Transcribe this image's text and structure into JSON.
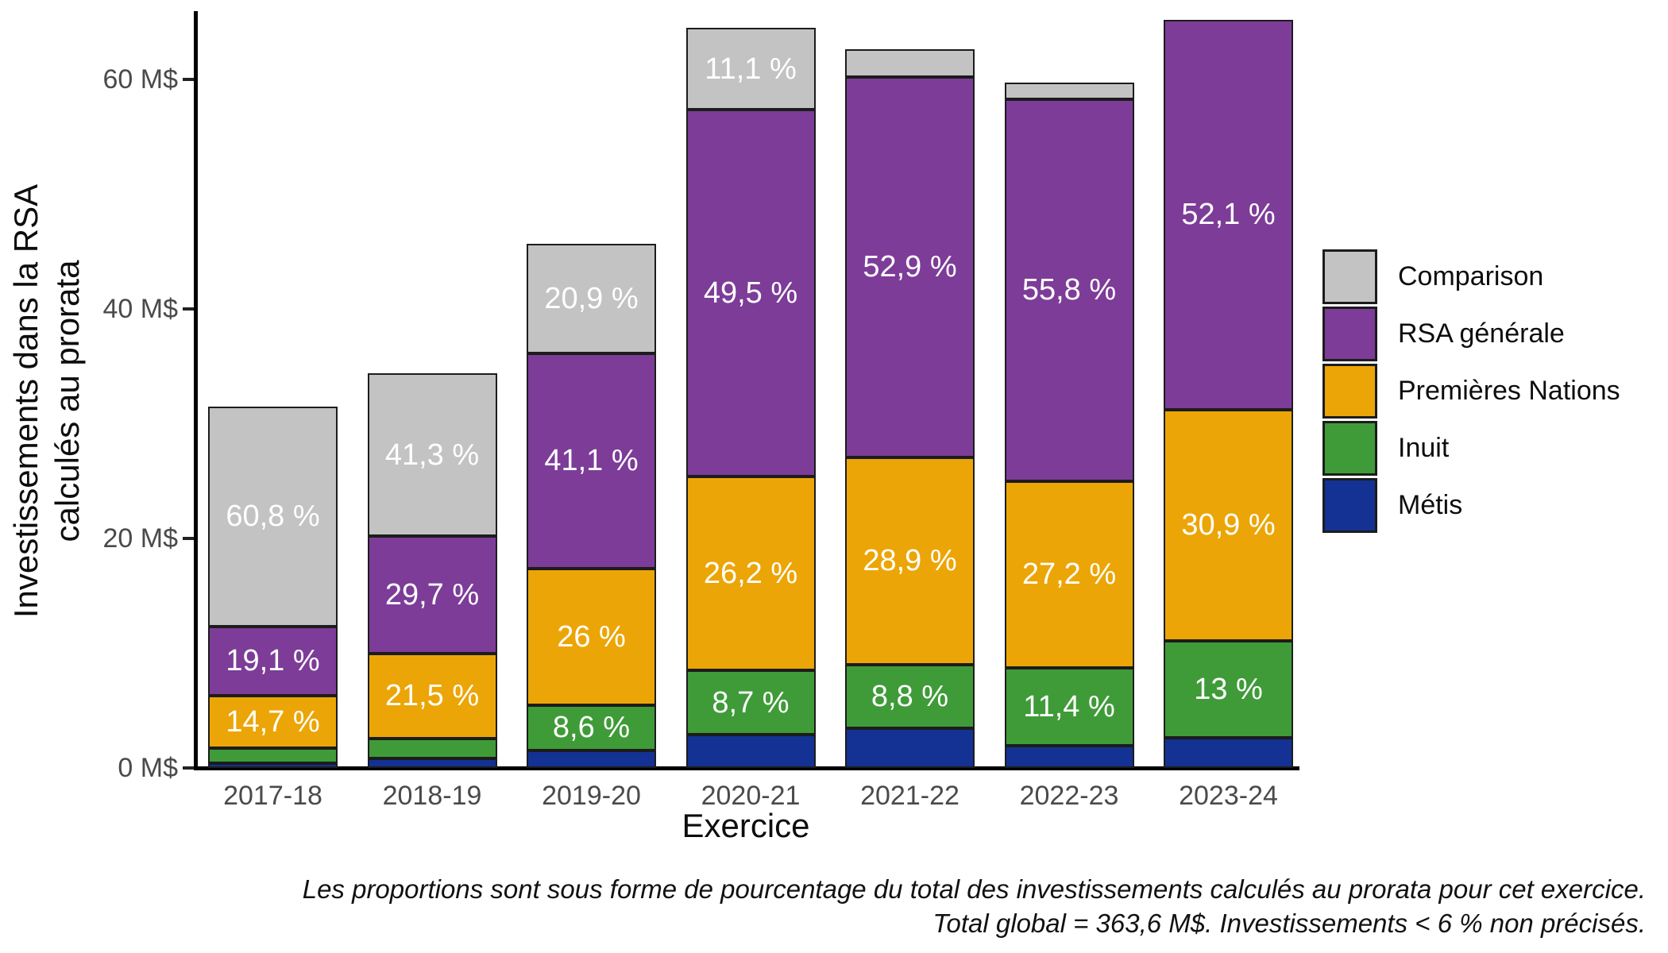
{
  "axes": {
    "y_title_line1": "Investissements dans la RSA",
    "y_title_line2": "calculés au prorata",
    "x_title": "Exercice"
  },
  "caption": {
    "line1": "Les proportions sont sous forme de pourcentage du total des investissements calculés au prorata pour cet exercice.",
    "line2": "Total global = 363,6 M$. Investissements < 6 % non précisés."
  },
  "legend": {
    "position": "right",
    "items_top_to_bottom": [
      "Comparison",
      "RSA générale",
      "Premières Nations",
      "Inuit",
      "Métis"
    ]
  },
  "chart_data": {
    "type": "bar",
    "stacked": true,
    "title": "",
    "xlabel": "Exercice",
    "ylabel": "Investissements dans la RSA calculés au prorata",
    "unit": "M$",
    "ylim": [
      0,
      66
    ],
    "grid": false,
    "yticks": [
      {
        "value": 0,
        "label": "0 M$"
      },
      {
        "value": 20,
        "label": "20 M$"
      },
      {
        "value": 40,
        "label": "40 M$"
      },
      {
        "value": 60,
        "label": "60 M$"
      }
    ],
    "categories": [
      "2017-18",
      "2018-19",
      "2019-20",
      "2020-21",
      "2021-22",
      "2022-23",
      "2023-24"
    ],
    "series_bottom_to_top": [
      {
        "name": "Métis",
        "color": "#133293",
        "values": [
          0.45,
          0.85,
          1.55,
          2.9,
          3.48,
          1.93,
          2.61
        ],
        "labels": [
          null,
          null,
          null,
          null,
          null,
          null,
          null
        ]
      },
      {
        "name": "Inuit",
        "color": "#3f9b38",
        "values": [
          1.25,
          1.72,
          3.93,
          5.61,
          5.51,
          6.81,
          8.48
        ],
        "labels": [
          null,
          null,
          "8,6 %",
          "8,7 %",
          "8,8 %",
          "11,4 %",
          "13 %"
        ]
      },
      {
        "name": "Premières Nations",
        "color": "#eca506",
        "values": [
          4.63,
          7.4,
          11.88,
          16.9,
          18.09,
          16.24,
          20.15
        ],
        "labels": [
          "14,7 %",
          "21,5 %",
          "26 %",
          "26,2 %",
          "28,9 %",
          "27,2 %",
          "30,9 %"
        ]
      },
      {
        "name": "RSA générale",
        "color": "#7d3c98",
        "values": [
          6.02,
          10.22,
          18.78,
          31.93,
          33.12,
          33.31,
          33.97
        ],
        "labels": [
          "19,1 %",
          "29,7 %",
          "41,1 %",
          "49,5 %",
          "52,9 %",
          "55,8 %",
          "52,1 %"
        ]
      },
      {
        "name": "Comparison",
        "color": "#c3c3c3",
        "values": [
          19.15,
          14.21,
          9.55,
          7.16,
          2.4,
          1.41,
          0
        ],
        "labels": [
          "60,8 %",
          "41,3 %",
          "20,9 %",
          "11,1 %",
          null,
          null,
          null
        ]
      }
    ],
    "totals": [
      31.5,
      34.4,
      45.7,
      64.5,
      62.6,
      59.7,
      65.2
    ],
    "grand_total_label": "363,6 M$",
    "legend_position": "right"
  }
}
